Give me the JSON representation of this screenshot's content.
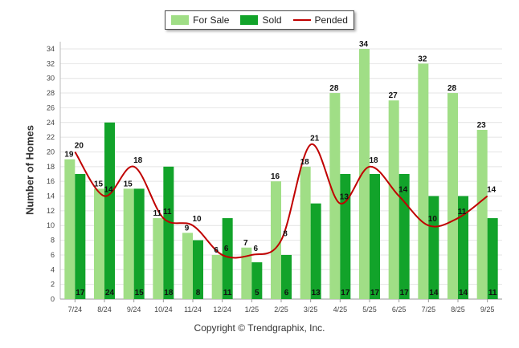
{
  "chart_data": {
    "type": "bar",
    "title": "",
    "xlabel": "",
    "ylabel": "Number of Homes",
    "ylim": [
      0,
      34
    ],
    "ytick_step": 2,
    "categories": [
      "7/24",
      "8/24",
      "9/24",
      "10/24",
      "11/24",
      "12/24",
      "1/25",
      "2/25",
      "3/25",
      "4/25",
      "5/25",
      "6/25",
      "7/25",
      "8/25",
      "9/25"
    ],
    "series": [
      {
        "name": "For Sale",
        "kind": "bar",
        "color": "#a0de86",
        "values": [
          19,
          15,
          15,
          11,
          9,
          6,
          7,
          16,
          18,
          28,
          34,
          27,
          32,
          28,
          23
        ]
      },
      {
        "name": "Sold",
        "kind": "bar",
        "color": "#12a32a",
        "values": [
          17,
          24,
          15,
          18,
          8,
          11,
          5,
          6,
          13,
          17,
          17,
          17,
          14,
          14,
          11
        ]
      },
      {
        "name": "Pended",
        "kind": "line",
        "color": "#c00000",
        "values": [
          20,
          14,
          18,
          11,
          10,
          6,
          6,
          8,
          21,
          13,
          18,
          14,
          10,
          11,
          14
        ]
      }
    ],
    "legend_position": "top-center",
    "grid": true
  },
  "legend": {
    "for_sale": "For Sale",
    "sold": "Sold",
    "pended": "Pended"
  },
  "footer": "Copyright © Trendgraphix, Inc."
}
